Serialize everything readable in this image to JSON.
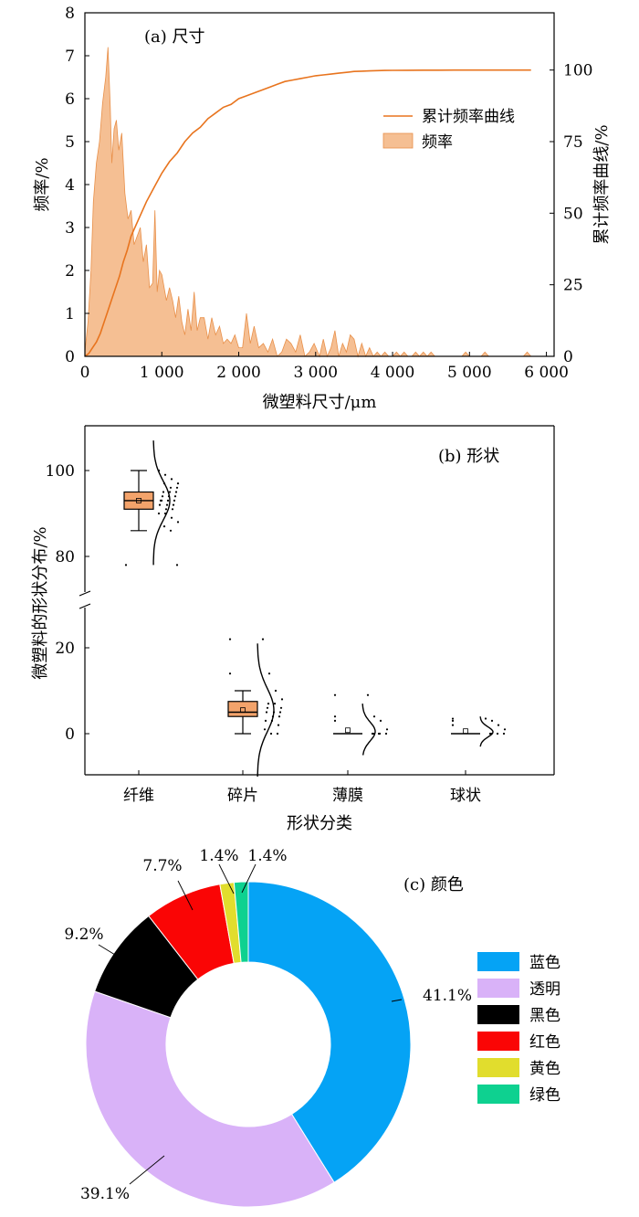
{
  "chart_data": [
    {
      "type": "area",
      "title": "(a) 尺寸",
      "xlabel": "微塑料尺寸/μm",
      "ylabel": "频率/%",
      "y2label": "累计频率曲线/%",
      "xlim": [
        0,
        6100
      ],
      "ylim": [
        0,
        8
      ],
      "y2lim": [
        0,
        120
      ],
      "xticks": [
        "0",
        "1 000",
        "2 000",
        "3 000",
        "4 000",
        "5 000",
        "6 000"
      ],
      "yticks": [
        "0",
        "1",
        "2",
        "3",
        "4",
        "5",
        "6",
        "7",
        "8"
      ],
      "y2ticks": [
        "0",
        "25",
        "50",
        "75",
        "100"
      ],
      "legend_position": "right",
      "legend": [
        "累计频率曲线",
        "频率"
      ],
      "colors": {
        "curve": "#e8741e",
        "fill": "#f5bf93",
        "fill_edge": "#e8904a"
      },
      "series": [
        {
          "name": "频率",
          "x": [
            0,
            40,
            80,
            110,
            150,
            190,
            230,
            270,
            300,
            330,
            350,
            380,
            410,
            440,
            480,
            520,
            560,
            600,
            640,
            680,
            720,
            760,
            800,
            840,
            880,
            910,
            940,
            970,
            1000,
            1030,
            1060,
            1100,
            1140,
            1180,
            1220,
            1260,
            1300,
            1340,
            1380,
            1420,
            1460,
            1500,
            1550,
            1600,
            1650,
            1700,
            1750,
            1800,
            1850,
            1900,
            1950,
            2000,
            2050,
            2100,
            2150,
            2200,
            2260,
            2320,
            2380,
            2440,
            2500,
            2560,
            2620,
            2680,
            2740,
            2800,
            2860,
            2920,
            2980,
            3050,
            3100,
            3150,
            3200,
            3250,
            3300,
            3350,
            3400,
            3450,
            3500,
            3550,
            3600,
            3650,
            3700,
            3750,
            3800,
            3850,
            3900,
            3950,
            4000,
            4050,
            4100,
            4150,
            4200,
            4250,
            4300,
            4350,
            4400,
            4450,
            4500,
            4550,
            4900,
            4950,
            5000,
            5050,
            5150,
            5200,
            5250,
            5300,
            5700,
            5750,
            5800,
            5850,
            5900,
            6000
          ],
          "values": [
            0.1,
            0.8,
            2.0,
            3.6,
            4.5,
            5.0,
            5.9,
            6.5,
            7.2,
            5.8,
            4.5,
            5.3,
            5.5,
            4.8,
            5.2,
            3.8,
            3.2,
            3.4,
            2.6,
            2.8,
            3.0,
            2.2,
            2.6,
            1.6,
            1.7,
            3.4,
            1.5,
            2.0,
            1.9,
            1.6,
            1.3,
            1.6,
            1.3,
            0.9,
            1.4,
            0.8,
            0.5,
            1.1,
            0.6,
            1.5,
            0.6,
            0.9,
            0.9,
            0.4,
            0.9,
            0.5,
            0.7,
            0.3,
            0.4,
            0.3,
            0.5,
            0.2,
            0.2,
            1.0,
            0.3,
            0.7,
            0.2,
            0.3,
            0.1,
            0.4,
            0.0,
            0.1,
            0.4,
            0.3,
            0.1,
            0.5,
            0.0,
            0.1,
            0.3,
            0.0,
            0.4,
            0.0,
            0.2,
            0.6,
            0.0,
            0.3,
            0.1,
            0.5,
            0.4,
            0.0,
            0.3,
            0.0,
            0.2,
            0.0,
            0.1,
            0.0,
            0.1,
            0.0,
            0.0,
            0.1,
            0.0,
            0.1,
            0.0,
            0.0,
            0.1,
            0.0,
            0.1,
            0.0,
            0.1,
            0.0,
            0.0,
            0.1,
            0.0,
            0.0,
            0.0,
            0.1,
            0.0,
            0.0,
            0.0,
            0.1,
            0.0,
            0.0,
            0.0,
            0.0
          ]
        },
        {
          "name": "累计频率曲线",
          "x": [
            0,
            50,
            100,
            150,
            200,
            250,
            300,
            350,
            400,
            450,
            500,
            550,
            600,
            700,
            800,
            900,
            1000,
            1100,
            1200,
            1300,
            1400,
            1500,
            1600,
            1700,
            1800,
            1900,
            2000,
            2100,
            2200,
            2300,
            2400,
            2500,
            2600,
            2700,
            2800,
            2900,
            3000,
            3100,
            3200,
            3300,
            3400,
            3500,
            3600,
            3700,
            3800,
            3900,
            4000,
            4200,
            4400,
            4600,
            4800,
            5000,
            5200,
            5400,
            5600,
            5800
          ],
          "values": [
            0,
            1,
            3,
            5,
            8,
            12,
            16,
            20,
            24,
            28,
            33,
            37,
            42,
            48,
            54,
            59,
            64,
            68,
            71,
            75,
            78,
            80,
            83,
            85,
            87,
            88,
            90,
            91,
            92,
            93,
            94,
            95,
            96,
            96.5,
            97,
            97.5,
            98,
            98.3,
            98.6,
            98.9,
            99.2,
            99.5,
            99.6,
            99.7,
            99.8,
            99.85,
            99.9,
            99.93,
            99.95,
            99.97,
            99.98,
            99.99,
            100,
            100,
            100,
            100
          ]
        }
      ]
    },
    {
      "type": "box",
      "title": "(b) 形状",
      "xlabel": "形状分类",
      "ylabel": "微塑料的形状分布/%",
      "ylim": [
        -10,
        108
      ],
      "axis_break": [
        27,
        72
      ],
      "yticks": [
        "0",
        "20",
        "80",
        "100"
      ],
      "box_color": "#f3a36b",
      "categories": [
        "纤维",
        "碎片",
        "薄膜",
        "球状"
      ],
      "boxes": [
        {
          "category": "纤维",
          "min": 86,
          "q1": 91,
          "median": 93,
          "q3": 95,
          "max": 100,
          "mean": 93,
          "outliers": [
            78
          ],
          "points": [
            100,
            99,
            98,
            97,
            97,
            96,
            96,
            95,
            95,
            95,
            94,
            94,
            94,
            93,
            93,
            93,
            93,
            92,
            92,
            92,
            91,
            91,
            90,
            90,
            89,
            88,
            87,
            86,
            78
          ],
          "density_range": [
            78,
            107
          ],
          "density_center": 93,
          "density_sigma": 4.5
        },
        {
          "category": "碎片",
          "min": 0,
          "q1": 4,
          "median": 5,
          "q3": 7.5,
          "max": 10,
          "mean": 5.5,
          "outliers": [
            14,
            22
          ],
          "points": [
            22,
            14,
            10,
            8,
            7,
            7,
            6,
            6,
            5,
            5,
            5,
            4,
            4,
            3,
            3,
            2,
            1,
            0,
            0
          ],
          "density_range": [
            -10,
            21
          ],
          "density_center": 5.5,
          "density_sigma": 5
        },
        {
          "category": "薄膜",
          "min": 0,
          "q1": 0,
          "median": 0,
          "q3": 0,
          "max": 0,
          "mean": 0.8,
          "outliers": [
            3,
            4,
            9
          ],
          "points": [
            9,
            4,
            3,
            1,
            0,
            0,
            0,
            0,
            0
          ],
          "density_range": [
            -5,
            7
          ],
          "density_center": 0.5,
          "density_sigma": 2.2
        },
        {
          "category": "球状",
          "min": 0,
          "q1": 0,
          "median": 0,
          "q3": 0,
          "max": 0,
          "mean": 0.6,
          "outliers": [
            2,
            3,
            3.5
          ],
          "points": [
            3.5,
            3,
            2,
            1,
            0,
            0,
            0,
            0
          ],
          "density_range": [
            -3,
            4
          ],
          "density_center": 0.4,
          "density_sigma": 1.2
        }
      ]
    },
    {
      "type": "pie",
      "title": "(c) 颜色",
      "donut": true,
      "legend_position": "right",
      "categories": [
        "蓝色",
        "透明",
        "黑色",
        "红色",
        "黄色",
        "绿色"
      ],
      "values": [
        41.1,
        39.1,
        9.2,
        7.7,
        1.4,
        1.4
      ],
      "labels": [
        "41.1%",
        "39.1%",
        "9.2%",
        "7.7%",
        "1.4%",
        "1.4%"
      ],
      "colors": [
        "#05a3f5",
        "#d9b2f8",
        "#000000",
        "#fa0505",
        "#e1dd2d",
        "#0ed190"
      ]
    }
  ]
}
